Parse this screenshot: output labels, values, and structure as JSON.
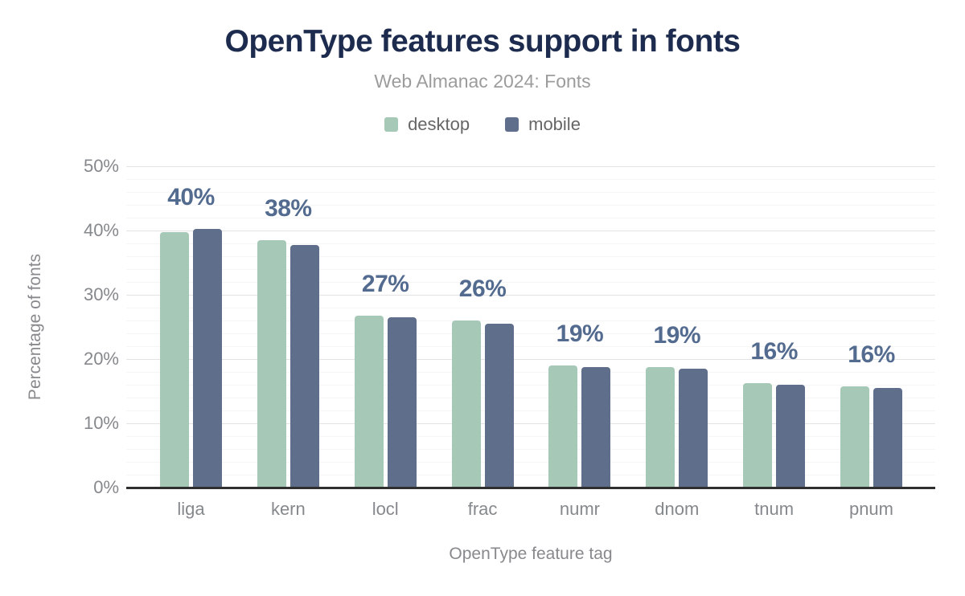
{
  "title": "OpenType features support in fonts",
  "subtitle": "Web Almanac 2024: Fonts",
  "y_axis_title": "Percentage of fonts",
  "x_axis_title": "OpenType feature tag",
  "colors": {
    "desktop": "#a6c9b7",
    "mobile": "#5e6e8b",
    "title": "#1d2c4e",
    "data_label": "#546b90",
    "axis_line": "#2f2f2f"
  },
  "chart_data": {
    "type": "bar",
    "title": "OpenType features support in fonts",
    "subtitle": "Web Almanac 2024: Fonts",
    "xlabel": "OpenType feature tag",
    "ylabel": "Percentage of fonts",
    "categories": [
      "liga",
      "kern",
      "locl",
      "frac",
      "numr",
      "dnom",
      "tnum",
      "pnum"
    ],
    "series": [
      {
        "name": "desktop",
        "color": "#a6c9b7",
        "values": [
          39.7,
          38.5,
          26.8,
          26.0,
          19.0,
          18.8,
          16.3,
          15.8
        ]
      },
      {
        "name": "mobile",
        "color": "#5e6e8b",
        "values": [
          40.2,
          37.8,
          26.5,
          25.5,
          18.8,
          18.5,
          16.0,
          15.5
        ]
      }
    ],
    "group_labels": [
      "40%",
      "38%",
      "27%",
      "26%",
      "19%",
      "19%",
      "16%",
      "16%"
    ],
    "ylim": [
      0,
      50
    ],
    "ytick_step": 10,
    "minor_grid_step": 2,
    "ytick_labels": [
      "0%",
      "10%",
      "20%",
      "30%",
      "40%",
      "50%"
    ],
    "grid": true,
    "legend_position": "top"
  }
}
